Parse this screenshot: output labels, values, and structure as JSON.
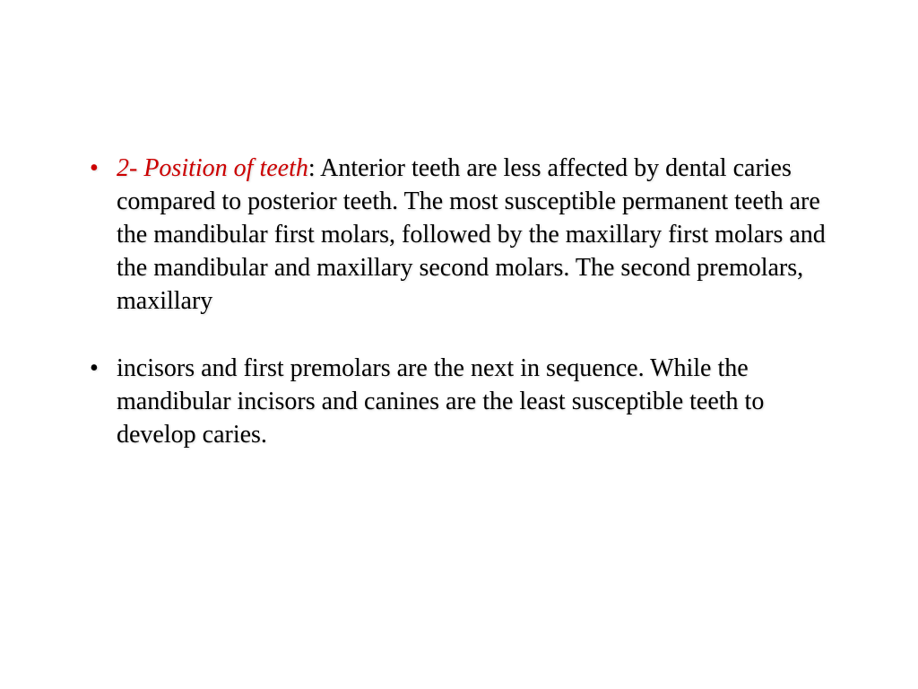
{
  "bullets": [
    {
      "heading": "2- Position of teeth",
      "body": ": Anterior teeth are less affected by dental caries compared to posterior teeth. The most susceptible permanent teeth are the mandibular first molars, followed by the maxillary first molars and the mandibular and maxillary second molars. The second premolars, maxillary",
      "redBullet": true
    },
    {
      "heading": "",
      "body": "incisors and first premolars are the next in sequence. While the mandibular incisors and canines are the least susceptible teeth to develop caries.",
      "redBullet": false
    }
  ],
  "style": {
    "heading_color": "#cc0000",
    "body_color": "#000000",
    "background_color": "#ffffff",
    "font_family": "Times New Roman",
    "font_size": 28,
    "line_height": 1.32
  }
}
